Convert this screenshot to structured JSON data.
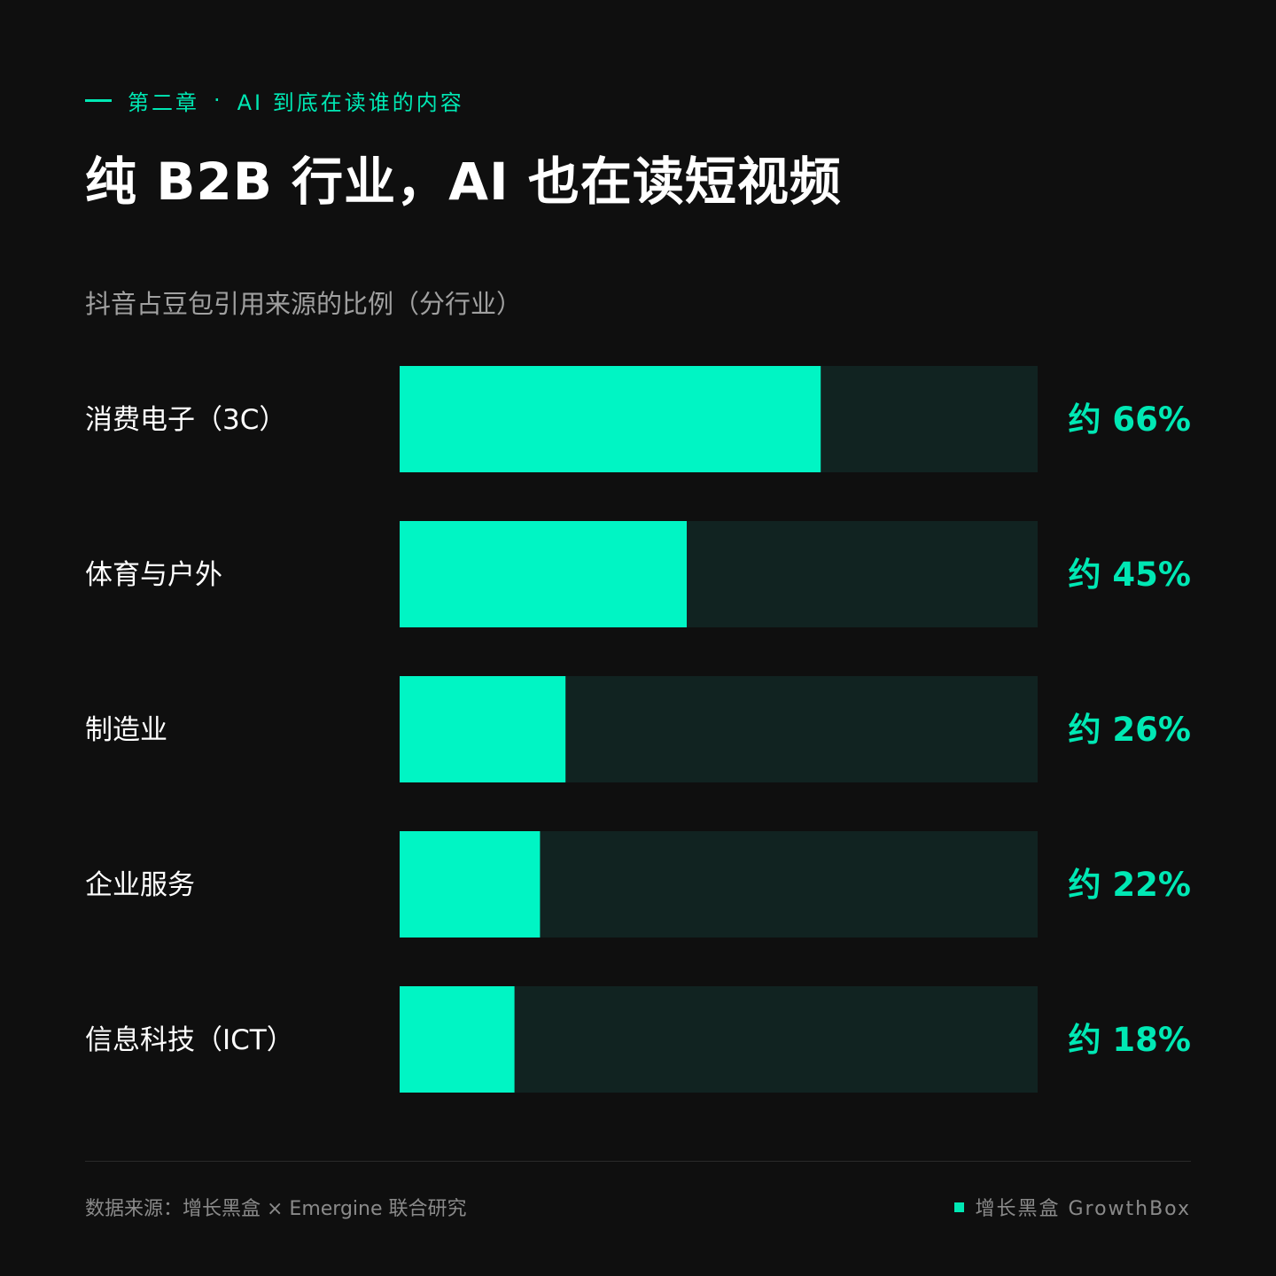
{
  "header": {
    "kicker_chapter": "第二章",
    "kicker_dot": "·",
    "kicker_topic": "AI 到底在读谁的内容",
    "title": "纯 B2B 行业，AI 也在读短视频",
    "subtitle": "抖音占豆包引用来源的比例（分行业）"
  },
  "chart_data": {
    "type": "bar",
    "orientation": "horizontal",
    "categories": [
      "消费电子（3C）",
      "体育与户外",
      "制造业",
      "企业服务",
      "信息科技（ICT）"
    ],
    "values": [
      66,
      45,
      26,
      22,
      18
    ],
    "value_labels": [
      "约 66%",
      "约 45%",
      "约 26%",
      "约 22%",
      "约 18%"
    ],
    "xlim": [
      0,
      100
    ],
    "grid": false,
    "legend": "none",
    "bar_color": "#00f5c4",
    "track_color": "#112321",
    "label_color": "#00e8b4"
  },
  "footer": {
    "source": "数据来源：增长黑盒 × Emergine 联合研究",
    "brand": "增长黑盒 GrowthBox"
  }
}
